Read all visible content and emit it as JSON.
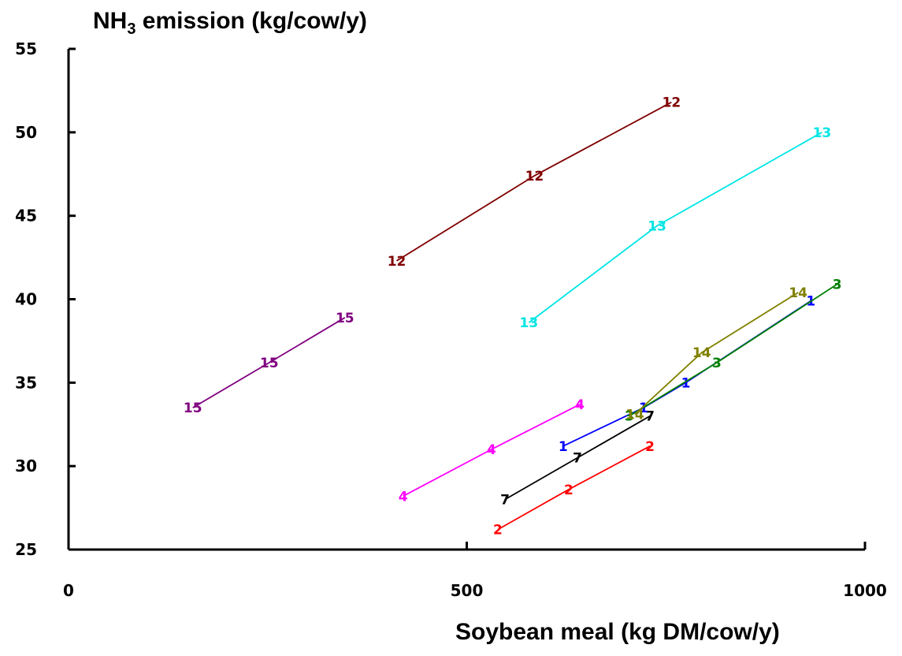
{
  "chart_data": {
    "type": "line",
    "title": "",
    "ylabel_main": "NH",
    "ylabel_sub": "3",
    "ylabel_rest": " emission (kg/cow/y)",
    "xlabel": "Soybean meal (kg DM/cow/y)",
    "xlim": [
      0,
      1000
    ],
    "ylim": [
      25,
      55
    ],
    "xticks": [
      0,
      500,
      1000
    ],
    "yticks": [
      25,
      30,
      35,
      40,
      45,
      50,
      55
    ],
    "grid": false,
    "legend": "none",
    "series": [
      {
        "name": "12",
        "color": "#800000",
        "points": [
          [
            412,
            42.3
          ],
          [
            585,
            47.4
          ],
          [
            757,
            51.8
          ]
        ]
      },
      {
        "name": "13",
        "color": "#00e5e5",
        "points": [
          [
            578,
            38.6
          ],
          [
            739,
            44.4
          ],
          [
            946,
            50.0
          ]
        ]
      },
      {
        "name": "15",
        "color": "#800080",
        "points": [
          [
            156,
            33.5
          ],
          [
            252,
            36.2
          ],
          [
            347,
            38.9
          ]
        ]
      },
      {
        "name": "4",
        "color": "#ff00ff",
        "points": [
          [
            420,
            28.2
          ],
          [
            531,
            31.0
          ],
          [
            642,
            33.7
          ]
        ]
      },
      {
        "name": "2",
        "color": "#ff0000",
        "points": [
          [
            539,
            26.2
          ],
          [
            628,
            28.6
          ],
          [
            730,
            31.2
          ]
        ]
      },
      {
        "name": "7",
        "color": "#000000",
        "points": [
          [
            548,
            28.0
          ],
          [
            639,
            30.5
          ],
          [
            730,
            33.0
          ]
        ]
      },
      {
        "name": "1",
        "color": "#0000ff",
        "points": [
          [
            621,
            31.2
          ],
          [
            722,
            33.5
          ],
          [
            775,
            35.0
          ],
          [
            932,
            39.9
          ]
        ]
      },
      {
        "name": "3",
        "color": "#008000",
        "points": [
          [
            704,
            33.0
          ],
          [
            814,
            36.2
          ],
          [
            965,
            40.9
          ]
        ]
      },
      {
        "name": "14",
        "color": "#808000",
        "points": [
          [
            711,
            33.1
          ],
          [
            795,
            36.8
          ],
          [
            916,
            40.4
          ]
        ]
      }
    ]
  }
}
